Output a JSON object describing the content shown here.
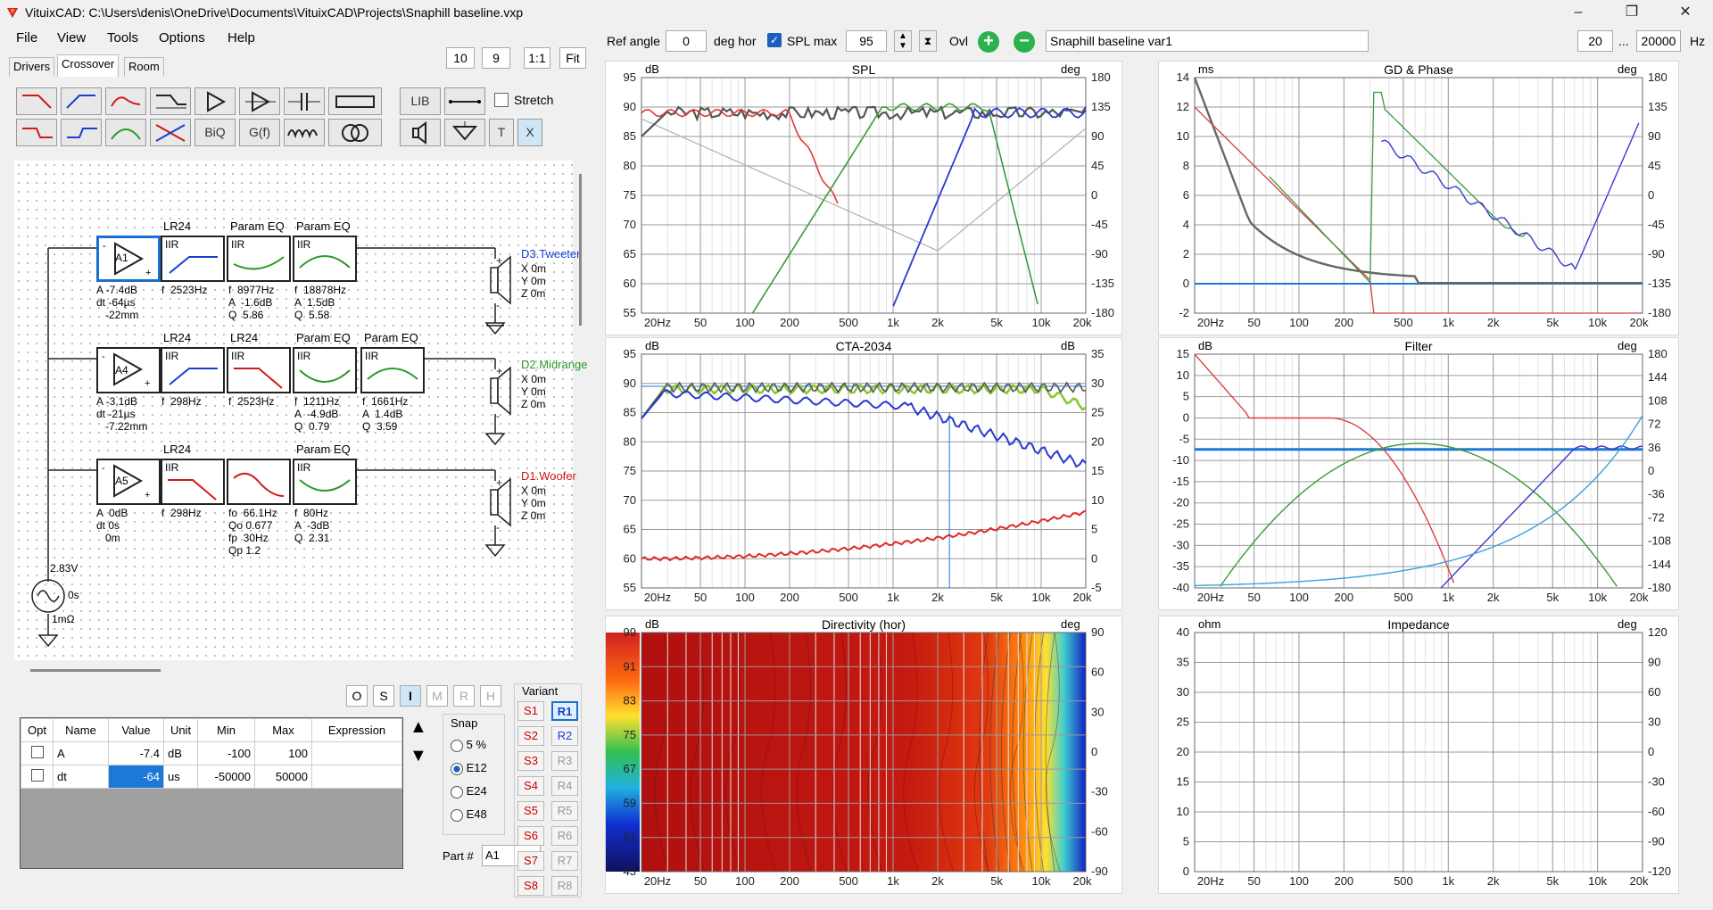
{
  "window": {
    "title": "VituixCAD: C:\\Users\\denis\\OneDrive\\Documents\\VituixCAD\\Projects\\Snaphill baseline.vxp",
    "min": "–",
    "max": "❐",
    "close": "✕"
  },
  "menu": [
    "File",
    "View",
    "Tools",
    "Options",
    "Help"
  ],
  "tabs": [
    "Drivers",
    "Crossover",
    "Room"
  ],
  "zoom_buttons": [
    "10",
    "9",
    "1:1",
    "Fit"
  ],
  "toolbar": {
    "biq": "BiQ",
    "gf": "G(f)",
    "lib": "LIB",
    "t": "T",
    "x": "X",
    "stretch": "Stretch"
  },
  "schematic": {
    "rows": [
      {
        "amp": {
          "name": "A1",
          "params": "A -7.4dB\ndt -64µs\n   -22mm"
        },
        "blocks": [
          {
            "top": "LR24",
            "type": "IIR",
            "params": "f  2523Hz"
          },
          {
            "top": "Param EQ",
            "type": "IIR",
            "params": "f  8977Hz\nA  -1.6dB\nQ  5.86"
          },
          {
            "top": "Param EQ",
            "type": "IIR",
            "params": "f  18878Hz\nA  1.5dB\nQ  5.58"
          }
        ],
        "driver": {
          "name": "D3.Tweeter",
          "pos": "X 0m\nY 0m\nZ 0m",
          "color": "#1a3fd0"
        }
      },
      {
        "amp": {
          "name": "A4",
          "params": "A -3.1dB\ndt -21µs\n   -7.22mm"
        },
        "blocks": [
          {
            "top": "LR24",
            "type": "IIR",
            "params": "f  298Hz"
          },
          {
            "top": "LR24",
            "type": "IIR",
            "params": "f  2523Hz"
          },
          {
            "top": "Param EQ",
            "type": "IIR",
            "params": "f  1211Hz\nA  -4.9dB\nQ  0.79"
          },
          {
            "top": "Param EQ",
            "type": "IIR",
            "params": "f  1661Hz\nA  1.4dB\nQ  3.59"
          }
        ],
        "driver": {
          "name": "D2.Midrange",
          "pos": "X 0m\nY 0m\nZ 0m",
          "color": "#2a9a2a"
        }
      },
      {
        "amp": {
          "name": "A5",
          "params": "A  0dB\ndt 0s\n   0m"
        },
        "blocks": [
          {
            "top": "LR24",
            "type": "IIR",
            "params": "f  298Hz"
          },
          {
            "top": "",
            "type": "",
            "params": "fo  66.1Hz\nQo 0.677\nfp  30Hz\nQp 1.2"
          },
          {
            "top": "Param EQ",
            "type": "IIR",
            "params": "f  80Hz\nA  -3dB\nQ  2.31"
          }
        ],
        "driver": {
          "name": "D1.Woofer",
          "pos": "X 0m\nY 0m\nZ 0m",
          "color": "#d01a1a"
        }
      }
    ],
    "source": {
      "voltage": "2.83V",
      "phase": "0s",
      "impedance": "1mΩ"
    }
  },
  "mode_buttons": [
    "O",
    "S",
    "I",
    "M",
    "R",
    "H"
  ],
  "param_table": {
    "headers": [
      "Opt",
      "Name",
      "Value",
      "Unit",
      "Min",
      "Max",
      "Expression"
    ],
    "rows": [
      {
        "name": "A",
        "value": "-7.4",
        "unit": "dB",
        "min": "-100",
        "max": "100"
      },
      {
        "name": "dt",
        "value": "-64",
        "unit": "us",
        "min": "-50000",
        "max": "50000"
      }
    ]
  },
  "snap": {
    "label": "Snap",
    "options": [
      "5 %",
      "E12",
      "E24",
      "E48"
    ],
    "selected": "E12"
  },
  "part": {
    "label": "Part #",
    "value": "A1"
  },
  "variant": {
    "label": "Variant",
    "s": [
      "S1",
      "S2",
      "S3",
      "S4",
      "S5",
      "S6",
      "S7",
      "S8"
    ],
    "r": [
      "R1",
      "R2",
      "R3",
      "R4",
      "R5",
      "R6",
      "R7",
      "R8"
    ]
  },
  "top_controls": {
    "ref_angle_label": "Ref angle",
    "ref_angle": "0",
    "deg_hor": "deg hor",
    "spl_max_label": "SPL max",
    "spl_max": "95",
    "ovl": "Ovl",
    "variant_name": "Snaphill baseline var1",
    "f_min": "20",
    "f_sep": "...",
    "f_max": "20000",
    "hz": "Hz"
  },
  "freq_ticks": [
    "20Hz",
    "50",
    "100",
    "200",
    "500",
    "1k",
    "2k",
    "5k",
    "10k",
    "20k"
  ],
  "graphs": {
    "spl": {
      "title": "SPL",
      "lunit": "dB",
      "runit": "deg",
      "left": [
        "95",
        "90",
        "85",
        "80",
        "75",
        "70",
        "65",
        "60",
        "55"
      ],
      "right": [
        "180",
        "135",
        "90",
        "45",
        "0",
        "-45",
        "-90",
        "-135",
        "-180"
      ]
    },
    "gd": {
      "title": "GD & Phase",
      "lunit": "ms",
      "runit": "deg",
      "left": [
        "14",
        "12",
        "10",
        "8",
        "6",
        "4",
        "2",
        "0",
        "-2"
      ],
      "right": [
        "180",
        "135",
        "90",
        "45",
        "0",
        "-45",
        "-90",
        "-135",
        "-180"
      ]
    },
    "cta": {
      "title": "CTA-2034",
      "lunit": "dB",
      "runit": "dB",
      "left": [
        "95",
        "90",
        "85",
        "80",
        "75",
        "70",
        "65",
        "60",
        "55"
      ],
      "right": [
        "35",
        "30",
        "25",
        "20",
        "15",
        "10",
        "5",
        "0",
        "-5"
      ]
    },
    "filter": {
      "title": "Filter",
      "lunit": "dB",
      "runit": "deg",
      "left": [
        "15",
        "10",
        "5",
        "0",
        "-5",
        "-10",
        "-15",
        "-20",
        "-25",
        "-30",
        "-35",
        "-40"
      ],
      "right": [
        "180",
        "144",
        "108",
        "72",
        "36",
        "0",
        "-36",
        "-72",
        "-108",
        "-144",
        "-180"
      ]
    },
    "dir": {
      "title": "Directivity (hor)",
      "lunit": "dB",
      "runit": "deg",
      "left": [
        "99",
        "91",
        "83",
        "75",
        "67",
        "59",
        "51",
        "43"
      ],
      "right": [
        "90",
        "60",
        "30",
        "0",
        "-30",
        "-60",
        "-90"
      ]
    },
    "imp": {
      "title": "Impedance",
      "lunit": "ohm",
      "runit": "deg",
      "left": [
        "40",
        "35",
        "30",
        "25",
        "20",
        "15",
        "10",
        "5",
        "0"
      ],
      "right": [
        "120",
        "90",
        "60",
        "30",
        "0",
        "-30",
        "-60",
        "-90",
        "-120"
      ]
    }
  }
}
